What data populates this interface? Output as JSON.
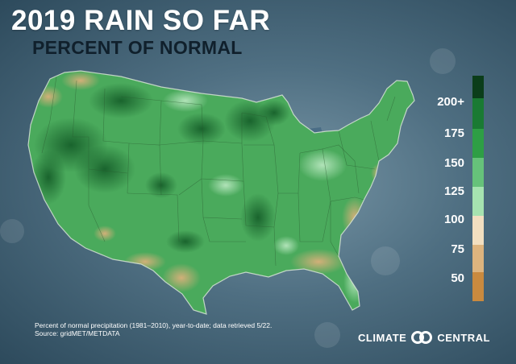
{
  "title": "2019 RAIN SO FAR",
  "subtitle": "PERCENT OF NORMAL",
  "legend": {
    "labels": [
      "200+",
      "175",
      "150",
      "125",
      "100",
      "75",
      "50"
    ],
    "colors": [
      "#0b3d1a",
      "#1a7a33",
      "#2e9e45",
      "#66c27a",
      "#a6e3b0",
      "#f2dfc0",
      "#ddb47e",
      "#c98a3f"
    ]
  },
  "footnote": {
    "line1": "Percent of normal precipitation (1981–2010), year-to-date; data retrieved 5/22.",
    "line2": "Source: gridMET/METDATA"
  },
  "brand": {
    "left": "CLIMATE",
    "right": "CENTRAL"
  }
}
